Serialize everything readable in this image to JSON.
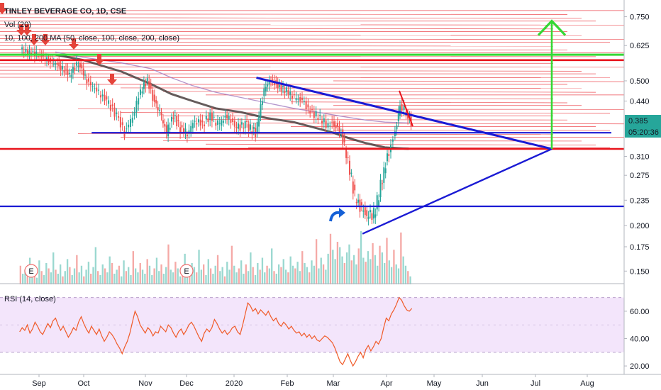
{
  "legend": {
    "title": "TINLEY BEVERAGE CO, 1D, CSE",
    "volume": "Vol (20)",
    "ma": "10, 100, 200 MA (50, close, 100, close, 200, close)"
  },
  "price_badges": {
    "last": "0.385",
    "countdown": "05:20:36"
  },
  "rsi_label": "RSI (14, close)",
  "earnings_marker": "E",
  "colors": {
    "background": "#ffffff",
    "candle_up": "#26a69a",
    "candle_down": "#ef5350",
    "trendline_blue": "#1a1ad4",
    "support_red": "#e8141c",
    "target_green": "#35d835",
    "ma200": "#4a4040",
    "ma100": "#a07cc0",
    "rsi_line": "#f05a28",
    "rsi_band": "#f3e5fb",
    "last_price_badge": "#26a69a",
    "sell_arrow": "#e5433a"
  },
  "chart_data": [
    {
      "type": "candlestick",
      "panel": "price",
      "title": "TINLEY BEVERAGE CO, 1D, CSE",
      "scale": "log",
      "y_tick_labels": [
        "0.750",
        "0.625",
        "0.500",
        "0.440",
        "0.385",
        "0.310",
        "0.275",
        "0.235",
        "0.200",
        "0.175",
        "0.150"
      ],
      "y_ticks": [
        0.75,
        0.625,
        0.5,
        0.44,
        0.385,
        0.31,
        0.275,
        0.235,
        0.2,
        0.175,
        0.15
      ],
      "ylim": [
        0.143,
        0.79
      ],
      "x_tick_labels": [
        "Sep",
        "Oct",
        "Nov",
        "Dec",
        "2020",
        "Feb",
        "Mar",
        "Apr",
        "May",
        "Jun",
        "Jul",
        "Aug"
      ],
      "last_price": 0.385,
      "series": [
        {
          "name": "MA 200",
          "x": [
            "2019-09-12",
            "2019-10-01",
            "2019-10-20",
            "2019-11-05",
            "2019-11-20",
            "2019-12-05",
            "2019-12-20",
            "2020-01-05",
            "2020-01-20",
            "2020-02-05",
            "2020-02-20",
            "2020-03-01",
            "2020-03-10",
            "2020-03-20",
            "2020-03-31",
            "2020-04-15"
          ],
          "y": [
            0.59,
            0.57,
            0.53,
            0.49,
            0.46,
            0.44,
            0.42,
            0.41,
            0.395,
            0.385,
            0.37,
            0.36,
            0.348,
            0.337,
            0.328,
            0.325
          ]
        },
        {
          "name": "MA 100",
          "x": [
            "2019-09-12",
            "2019-10-01",
            "2019-10-20",
            "2019-11-05",
            "2019-11-20",
            "2019-12-05",
            "2019-12-20",
            "2020-01-05",
            "2020-01-20",
            "2020-02-05",
            "2020-02-20",
            "2020-03-05",
            "2020-03-20",
            "2020-03-31",
            "2020-04-15"
          ],
          "y": [
            0.6,
            0.58,
            0.56,
            0.54,
            0.51,
            0.485,
            0.465,
            0.45,
            0.435,
            0.42,
            0.41,
            0.4,
            0.39,
            0.385,
            0.383
          ]
        }
      ],
      "price_path": {
        "x": [
          "2019-08-20",
          "2019-08-25",
          "2019-09-01",
          "2019-09-08",
          "2019-09-15",
          "2019-09-22",
          "2019-09-28",
          "2019-10-03",
          "2019-10-08",
          "2019-10-13",
          "2019-10-18",
          "2019-10-22",
          "2019-10-26",
          "2019-10-30",
          "2019-11-03",
          "2019-11-07",
          "2019-11-12",
          "2019-11-17",
          "2019-11-22",
          "2019-11-27",
          "2019-12-02",
          "2019-12-07",
          "2019-12-12",
          "2019-12-17",
          "2019-12-22",
          "2019-12-28",
          "2020-01-03",
          "2020-01-08",
          "2020-01-14",
          "2020-01-20",
          "2020-01-24",
          "2020-01-28",
          "2020-02-01",
          "2020-02-06",
          "2020-02-11",
          "2020-02-16",
          "2020-02-21",
          "2020-02-26",
          "2020-03-02",
          "2020-03-06",
          "2020-03-10",
          "2020-03-14",
          "2020-03-18",
          "2020-03-22",
          "2020-03-26",
          "2020-03-30",
          "2020-04-03",
          "2020-04-07",
          "2020-04-10",
          "2020-04-14",
          "2020-04-17"
        ],
        "y": [
          0.61,
          0.6,
          0.59,
          0.57,
          0.55,
          0.52,
          0.56,
          0.5,
          0.47,
          0.44,
          0.4,
          0.36,
          0.4,
          0.47,
          0.5,
          0.45,
          0.41,
          0.36,
          0.4,
          0.37,
          0.36,
          0.39,
          0.38,
          0.4,
          0.38,
          0.4,
          0.37,
          0.38,
          0.36,
          0.49,
          0.5,
          0.48,
          0.47,
          0.45,
          0.44,
          0.41,
          0.4,
          0.38,
          0.38,
          0.36,
          0.3,
          0.24,
          0.22,
          0.21,
          0.22,
          0.27,
          0.32,
          0.36,
          0.43,
          0.41,
          0.385
        ]
      },
      "drawings": {
        "horizontal_lines": [
          {
            "color": "green",
            "y": 0.59
          },
          {
            "color": "red",
            "y": 0.57
          },
          {
            "color": "red",
            "y": 0.325
          },
          {
            "color": "blue",
            "y": 0.36
          },
          {
            "color": "blue",
            "y": 0.226
          }
        ],
        "descending_trendline": {
          "from": [
            "2020-01-14",
            0.51
          ],
          "to": [
            "2020-07-10",
            0.325
          ]
        },
        "ascending_trendline": {
          "from": [
            "2020-03-18",
            0.19
          ],
          "to": [
            "2020-07-10",
            0.325
          ]
        },
        "target_arrow": {
          "x": "2020-07-10",
          "from": 0.325,
          "to": 0.73
        }
      }
    },
    {
      "type": "bar",
      "panel": "volume",
      "title": "Vol (20)",
      "x_range": [
        "2019-08-19",
        "2020-04-17"
      ],
      "values": [
        1.4,
        0.8,
        1.1,
        0.6,
        2.0,
        0.9,
        1.3,
        0.5,
        1.8,
        1.0,
        0.7,
        1.6,
        1.2,
        0.9,
        2.4,
        1.1,
        0.8,
        1.5,
        0.6,
        1.0,
        1.9,
        1.3,
        0.7,
        1.2,
        2.2,
        0.9,
        1.4,
        0.6,
        1.1,
        1.7,
        0.8,
        1.3,
        2.8,
        1.0,
        0.7,
        1.5,
        1.2,
        0.9,
        2.1,
        1.6,
        0.8,
        1.1,
        1.4,
        0.6,
        1.8,
        1.0,
        1.3,
        0.7,
        2.5,
        1.2,
        0.9,
        1.6,
        1.1,
        0.8,
        1.9,
        1.4,
        0.7,
        1.2,
        2.0,
        1.0,
        1.5,
        0.8,
        1.3,
        3.0,
        1.1,
        0.9,
        1.7,
        1.2,
        0.6,
        1.4,
        2.3,
        1.0,
        0.8,
        1.6,
        1.3,
        0.9,
        2.6,
        1.1,
        1.5,
        0.7,
        1.9,
        1.2,
        0.8,
        1.4,
        2.2,
        1.0,
        1.3,
        0.6,
        1.7,
        1.1,
        2.9,
        1.4,
        0.9,
        1.2,
        1.8,
        0.8,
        1.5,
        1.0,
        2.4,
        1.3,
        0.7,
        1.6,
        1.1,
        2.0,
        0.9,
        1.4,
        1.2,
        2.7,
        1.0,
        0.8,
        1.5,
        1.3,
        1.9,
        1.1,
        0.9,
        2.1,
        1.4,
        1.2,
        1.7,
        1.0,
        2.5,
        1.6,
        1.3,
        0.9,
        1.8,
        1.4,
        3.4,
        1.2,
        2.0,
        1.5,
        1.1,
        2.3,
        3.8,
        2.6,
        1.9,
        3.2,
        2.8,
        2.1,
        1.6,
        2.4,
        3.0,
        1.8,
        2.2,
        1.5,
        2.7,
        4.0,
        2.0,
        1.7,
        2.5,
        1.9,
        3.1,
        2.2,
        1.4,
        2.9,
        2.4,
        1.6,
        3.5,
        1.8,
        1.3,
        2.6,
        1.5,
        1.2,
        3.9,
        2.1,
        1.4,
        1.0,
        0.6
      ]
    },
    {
      "type": "line",
      "panel": "rsi",
      "title": "RSI (14, close)",
      "y_tick_labels": [
        "60.00",
        "40.00",
        "20.00"
      ],
      "y_ticks": [
        60,
        40,
        20
      ],
      "ylim": [
        18,
        76
      ],
      "band": [
        30,
        70
      ],
      "x_range": [
        "2019-08-19",
        "2020-04-17"
      ],
      "values": [
        45,
        48,
        46,
        50,
        44,
        47,
        52,
        49,
        45,
        43,
        47,
        51,
        48,
        53,
        55,
        50,
        46,
        49,
        45,
        41,
        44,
        48,
        46,
        52,
        56,
        51,
        47,
        44,
        49,
        46,
        43,
        47,
        42,
        38,
        41,
        45,
        43,
        40,
        36,
        33,
        29,
        34,
        38,
        44,
        52,
        60,
        56,
        50,
        47,
        44,
        48,
        46,
        42,
        45,
        44,
        49,
        47,
        45,
        50,
        48,
        44,
        41,
        45,
        47,
        43,
        46,
        50,
        52,
        49,
        45,
        41,
        38,
        44,
        47,
        45,
        48,
        54,
        51,
        47,
        44,
        46,
        43,
        45,
        48,
        49,
        45,
        43,
        50,
        58,
        66,
        64,
        60,
        62,
        58,
        61,
        59,
        57,
        60,
        56,
        53,
        55,
        51,
        49,
        52,
        50,
        47,
        49,
        46,
        44,
        45,
        42,
        44,
        41,
        43,
        40,
        42,
        39,
        38,
        40,
        42,
        41,
        39,
        37,
        33,
        28,
        23,
        21,
        25,
        29,
        24,
        20,
        23,
        27,
        30,
        26,
        32,
        35,
        31,
        34,
        38,
        36,
        40,
        48,
        55,
        53,
        58,
        61,
        65,
        70,
        68,
        64,
        61,
        60,
        62
      ]
    }
  ]
}
